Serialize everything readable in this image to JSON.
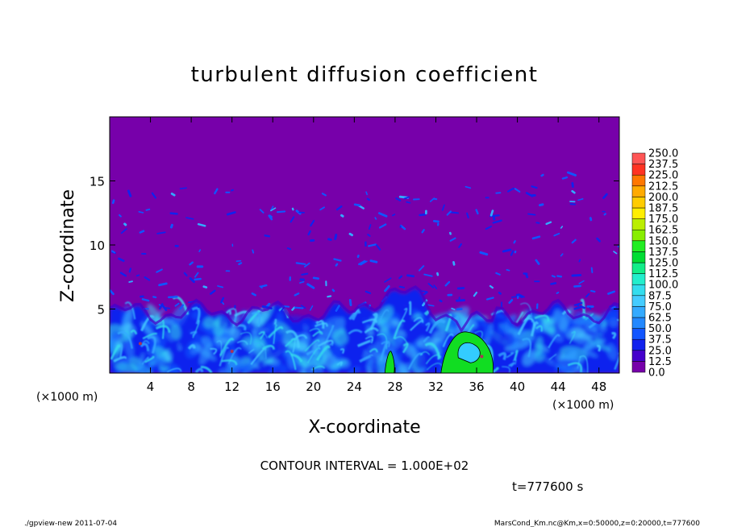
{
  "chart_data": {
    "type": "heatmap",
    "title": "turbulent diffusion coefficient",
    "xlabel": "X-coordinate",
    "ylabel": "Z-coordinate",
    "xunit": "(×1000 m)",
    "yunit": "(×1000 m)",
    "xlim": [
      0,
      50
    ],
    "ylim": [
      0,
      20
    ],
    "xticks": [
      4,
      8,
      12,
      16,
      20,
      24,
      28,
      32,
      36,
      40,
      44,
      48
    ],
    "yticks": [
      5,
      10,
      15
    ],
    "contour_interval_text": "CONTOUR INTERVAL = 1.000E+02",
    "time_text": "t=777600 s",
    "colorbar": {
      "levels": [
        "0.0",
        "12.5",
        "25.0",
        "37.5",
        "50.0",
        "62.5",
        "75.0",
        "87.5",
        "100.0",
        "112.5",
        "125.0",
        "137.5",
        "150.0",
        "162.5",
        "175.0",
        "187.5",
        "200.0",
        "212.5",
        "225.0",
        "237.5",
        "250.0"
      ],
      "colors": [
        "#7700aa",
        "#4400cc",
        "#1122ee",
        "#1155ff",
        "#2288ff",
        "#33aaff",
        "#44ccff",
        "#33ddee",
        "#22eecc",
        "#11ee88",
        "#00dd33",
        "#22ee22",
        "#88ee00",
        "#bbee00",
        "#ffee00",
        "#ffcc00",
        "#ffaa00",
        "#ff7700",
        "#ff3322",
        "#ff5555"
      ]
    },
    "footer_left": "./gpview-new  2011-07-04",
    "footer_right": "MarsCond_Km.nc@Km,x=0:50000,z=0:20000,t=777600"
  }
}
